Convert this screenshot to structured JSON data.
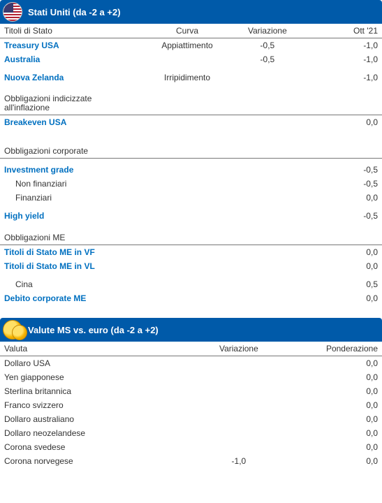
{
  "colors": {
    "header_bg": "#005aa9",
    "link_text": "#0070c0",
    "text": "#333333",
    "border": "#777777",
    "page_bg": "#ffffff"
  },
  "panel1": {
    "title": "Stati Uniti (da -2 a +2)",
    "columns": {
      "c1": "Titoli di Stato",
      "c2": "Curva",
      "c3": "Variazione",
      "c4": "Ott '21"
    },
    "rows": [
      {
        "kind": "link",
        "label": "Treasury USA",
        "curva": "Appiattimento",
        "var": "-0,5",
        "ott": "-1,0"
      },
      {
        "kind": "link",
        "label": "Australia",
        "curva": "",
        "var": "-0,5",
        "ott": "-1,0"
      },
      {
        "kind": "gap"
      },
      {
        "kind": "link",
        "label": "Nuova Zelanda",
        "curva": "Irripidimento",
        "var": "",
        "ott": "-1,0"
      },
      {
        "kind": "section-twoline",
        "label": "Obbligazioni indicizzate\nall'inflazione"
      },
      {
        "kind": "link",
        "label": "Breakeven USA",
        "curva": "",
        "var": "",
        "ott": "0,0"
      },
      {
        "kind": "spacer"
      },
      {
        "kind": "section",
        "label": "Obbligazioni corporate"
      },
      {
        "kind": "gap"
      },
      {
        "kind": "link",
        "label": "Investment grade",
        "curva": "",
        "var": "",
        "ott": "-0,5"
      },
      {
        "kind": "indent",
        "label": "Non finanziari",
        "curva": "",
        "var": "",
        "ott": "-0,5"
      },
      {
        "kind": "indent",
        "label": "Finanziari",
        "curva": "",
        "var": "",
        "ott": "0,0"
      },
      {
        "kind": "gap"
      },
      {
        "kind": "link",
        "label": "High yield",
        "curva": "",
        "var": "",
        "ott": "-0,5"
      },
      {
        "kind": "section",
        "label": "Obbligazioni ME"
      },
      {
        "kind": "link",
        "label": "Titoli di Stato ME in VF",
        "curva": "",
        "var": "",
        "ott": "0,0"
      },
      {
        "kind": "link",
        "label": "Titoli di Stato ME in VL",
        "curva": "",
        "var": "",
        "ott": "0,0"
      },
      {
        "kind": "gap"
      },
      {
        "kind": "indent",
        "label": "Cina",
        "curva": "",
        "var": "",
        "ott": "0,5"
      },
      {
        "kind": "link",
        "label": "Debito corporate ME",
        "curva": "",
        "var": "",
        "ott": "0,0"
      }
    ]
  },
  "panel2": {
    "title": "Valute MS vs. euro (da -2 a +2)",
    "columns": {
      "c1": "Valuta",
      "c2": "Variazione",
      "c3": "Ponderazione"
    },
    "rows": [
      {
        "label": "Dollaro USA",
        "var": "",
        "pond": "0,0"
      },
      {
        "label": "Yen giapponese",
        "var": "",
        "pond": "0,0"
      },
      {
        "label": "Sterlina britannica",
        "var": "",
        "pond": "0,0"
      },
      {
        "label": "Franco svizzero",
        "var": "",
        "pond": "0,0"
      },
      {
        "label": "Dollaro australiano",
        "var": "",
        "pond": "0,0"
      },
      {
        "label": "Dollaro neozelandese",
        "var": "",
        "pond": "0,0"
      },
      {
        "label": "Corona svedese",
        "var": "",
        "pond": "0,0"
      },
      {
        "label": "Corona norvegese",
        "var": "-1,0",
        "pond": "0,0"
      }
    ]
  }
}
